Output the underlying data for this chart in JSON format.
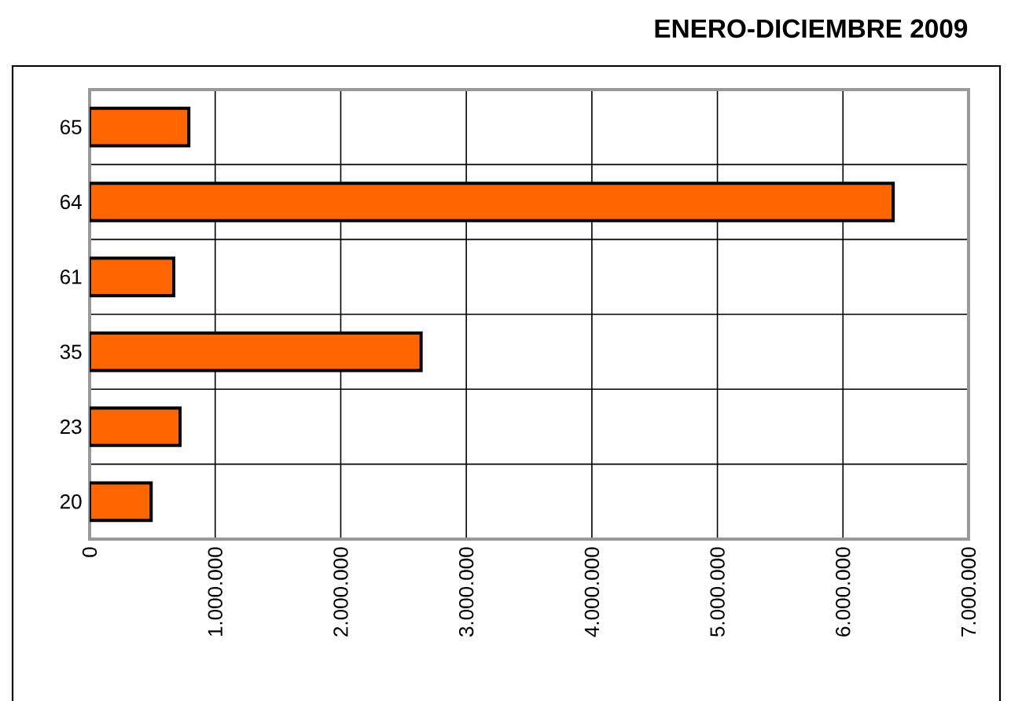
{
  "chart_data": {
    "type": "bar",
    "orientation": "horizontal",
    "title": "ENERO-DICIEMBRE 2009",
    "categories": [
      "65",
      "64",
      "61",
      "35",
      "23",
      "20"
    ],
    "values": [
      790000,
      6400000,
      670000,
      2640000,
      720000,
      490000
    ],
    "color": "#ff6600",
    "xlim": [
      0,
      7000000
    ],
    "xticks": [
      0,
      {
        "value": 1000000,
        "label": "1.000.000"
      },
      {
        "value": 2000000,
        "label": "2.000.000"
      },
      {
        "value": 3000000,
        "label": "3.000.000"
      },
      {
        "value": 4000000,
        "label": "4.000.000"
      },
      {
        "value": 5000000,
        "label": "5.000.000"
      },
      {
        "value": 6000000,
        "label": "6.000.000"
      },
      {
        "value": 7000000,
        "label": "7.000.000"
      }
    ],
    "grid": true
  }
}
